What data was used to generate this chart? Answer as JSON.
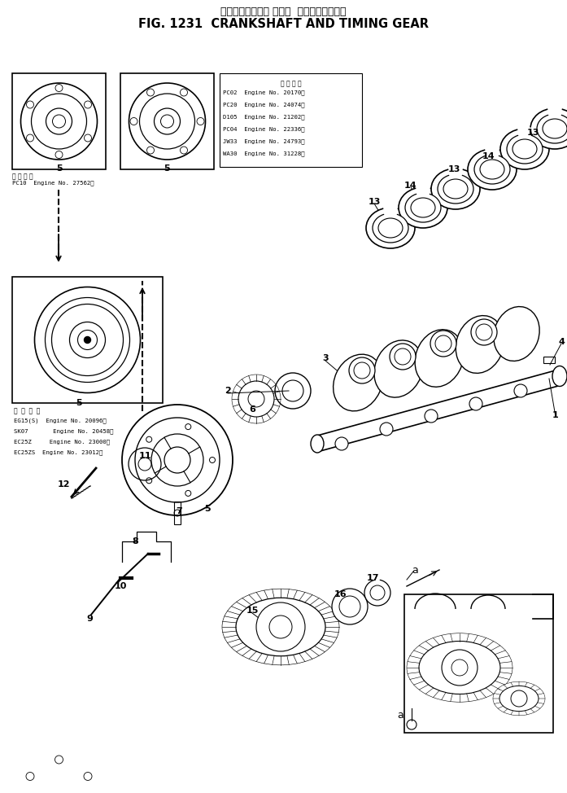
{
  "title_japanese": "クランクシャフト および  タイミングギヤー",
  "title_english": "FIG. 1231  CRANKSHAFT AND TIMING GEAR",
  "bg": "#ffffff",
  "lc": "#000000",
  "app_box1_lines": [
    "適 用 号 機",
    "PC02  Engine No. 20170～",
    "PC20  Engine No. 24074～",
    "D105  Engine No. 21202～",
    "PC04  Engine No. 22336～",
    "JW33  Engine No. 24793～",
    "WA30  Engine No. 31228～"
  ],
  "app_box2_line": "PC10  Engine No. 27562～",
  "app_box2_label": "適 用 号 機",
  "app_box3_lines": [
    "適 用 号 機",
    "EG15(S)  Engine No. 20096～",
    "SK07       Engine No. 20458～",
    "EC25Z     Engine No. 23000～",
    "EC25ZS  Engine No. 23012～"
  ]
}
